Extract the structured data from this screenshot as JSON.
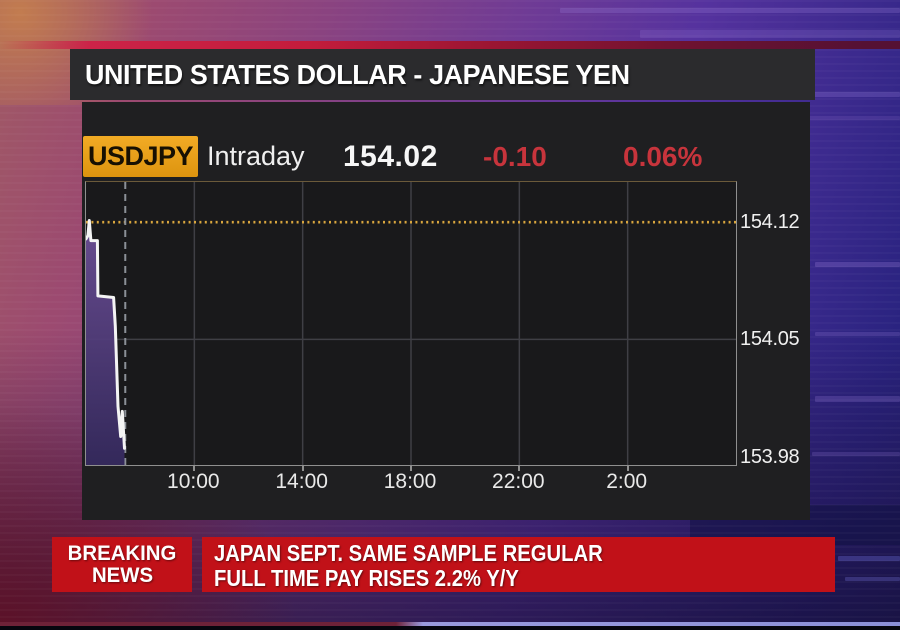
{
  "colors": {
    "accent_orange": "#e7a01c",
    "down_red": "#c7343c",
    "banner_red": "#c11118",
    "reference_line": "#d9a63e",
    "price_line": "#f4f4f4",
    "area_fill_top": "#6d4f96",
    "area_fill_bottom": "#362a60"
  },
  "header": {
    "title": "UNITED STATES DOLLAR - JAPANESE YEN"
  },
  "quote": {
    "symbol": "USDJPY",
    "range_label": "Intraday",
    "last_price": "154.02",
    "change": "-0.10",
    "change_pct": "0.06%"
  },
  "chart_data": {
    "type": "line",
    "title": "USDJPY Intraday",
    "x_tick_labels": [
      "10:00",
      "14:00",
      "18:00",
      "22:00",
      "2:00"
    ],
    "x_tick_hours": [
      10,
      14,
      18,
      22,
      26
    ],
    "x_range_hours": [
      6,
      30
    ],
    "y_tick_labels": [
      "154.12",
      "154.05",
      "153.98"
    ],
    "y_tick_values": [
      154.12,
      154.05,
      153.98
    ],
    "ylim": [
      153.975,
      154.144
    ],
    "grid_y_values": [
      154.05
    ],
    "grid": "on",
    "legend": "none",
    "reference_line": {
      "value": 154.12,
      "style": "dotted"
    },
    "time_marker_hour": 7.45,
    "series": [
      {
        "name": "USDJPY",
        "points": [
          [
            6.0,
            154.11
          ],
          [
            6.07,
            154.112
          ],
          [
            6.12,
            154.121
          ],
          [
            6.18,
            154.109
          ],
          [
            6.42,
            154.109
          ],
          [
            6.44,
            154.076
          ],
          [
            7.02,
            154.075
          ],
          [
            7.08,
            154.058
          ],
          [
            7.18,
            154.01
          ],
          [
            7.28,
            153.992
          ],
          [
            7.34,
            154.007
          ],
          [
            7.42,
            153.985
          ]
        ]
      }
    ]
  },
  "breaking_news": {
    "badge_line1": "BREAKING",
    "badge_line2": "NEWS",
    "headline_line1": "JAPAN SEPT. SAME SAMPLE REGULAR",
    "headline_line2": "FULL TIME PAY RISES 2.2% Y/Y"
  }
}
